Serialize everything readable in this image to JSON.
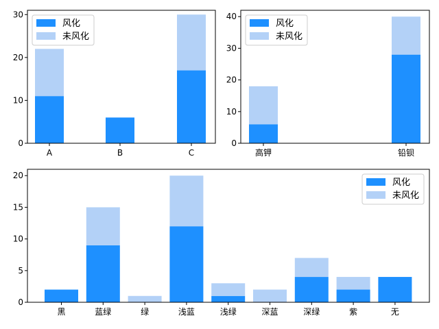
{
  "colors": {
    "weathered": "#1e90ff",
    "unweathered": "#b3d1f7"
  },
  "chart_data": [
    {
      "type": "bar",
      "stacked": true,
      "categories": [
        "A",
        "B",
        "C"
      ],
      "series": [
        {
          "name": "风化",
          "values": [
            11,
            6,
            17
          ]
        },
        {
          "name": "未风化",
          "values": [
            11,
            0,
            13
          ]
        }
      ],
      "ylim": [
        0,
        31
      ],
      "yticks": [
        0,
        10,
        20,
        30
      ],
      "legend": "top-left",
      "grid": false
    },
    {
      "type": "bar",
      "stacked": true,
      "categories": [
        "高钾",
        "铅钡"
      ],
      "series": [
        {
          "name": "风化",
          "values": [
            6,
            28
          ]
        },
        {
          "name": "未风化",
          "values": [
            12,
            12
          ]
        }
      ],
      "ylim": [
        0,
        42
      ],
      "yticks": [
        0,
        10,
        20,
        30,
        40
      ],
      "legend": "top-left",
      "grid": false
    },
    {
      "type": "bar",
      "stacked": true,
      "categories": [
        "黑",
        "蓝绿",
        "绿",
        "浅蓝",
        "浅绿",
        "深蓝",
        "深绿",
        "紫",
        "无"
      ],
      "series": [
        {
          "name": "风化",
          "values": [
            2,
            9,
            0,
            12,
            1,
            0,
            4,
            2,
            4
          ]
        },
        {
          "name": "未风化",
          "values": [
            0,
            6,
            1,
            8,
            2,
            2,
            3,
            2,
            0
          ]
        }
      ],
      "ylim": [
        0,
        21
      ],
      "yticks": [
        0,
        5,
        10,
        15,
        20
      ],
      "legend": "top-right",
      "grid": false
    }
  ]
}
